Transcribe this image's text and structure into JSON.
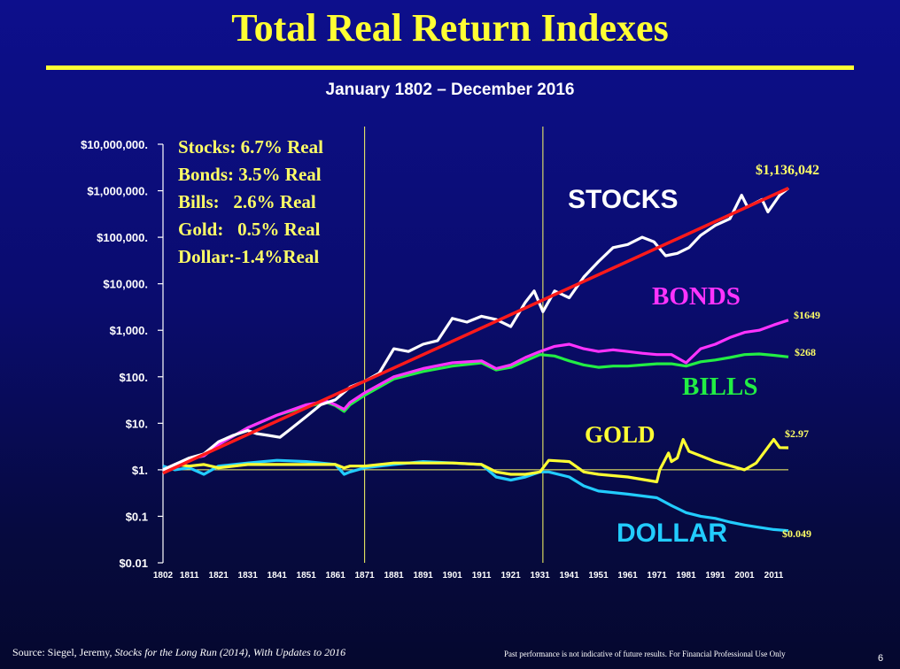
{
  "slide": {
    "title": "Total Real Return Indexes",
    "subtitle": "January 1802 – December 2016",
    "source_prefix": "Source: Siegel, Jeremy, ",
    "source_book": "Stocks for the Long Run (2014), With Updates to 2016",
    "disclaimer": "Past performance is not indicative of future results.  For Financial Professional Use Only",
    "page_number": "6"
  },
  "colors": {
    "background": "#0a0c6e",
    "title": "#ffff33",
    "stocks": "#ffffff",
    "trend": "#ff1a1a",
    "bonds": "#ff33ff",
    "bills": "#22ee44",
    "gold": "#ffff33",
    "dollar": "#22ccff",
    "axis": "#ffffff",
    "marker_lines": "#ffff66"
  },
  "chart_data": {
    "type": "line",
    "title": "Total Real Return Indexes",
    "subtitle": "January 1802 – December 2016",
    "y_scale": "log",
    "ylim": [
      0.01,
      10000000
    ],
    "xlim": [
      1802,
      2016
    ],
    "y_ticks": [
      {
        "value": 10000000,
        "label": "$10,000,000."
      },
      {
        "value": 1000000,
        "label": "$1,000,000."
      },
      {
        "value": 100000,
        "label": "$100,000."
      },
      {
        "value": 10000,
        "label": "$10,000."
      },
      {
        "value": 1000,
        "label": "$1,000."
      },
      {
        "value": 100,
        "label": "$100."
      },
      {
        "value": 10,
        "label": "$10."
      },
      {
        "value": 1,
        "label": "$1."
      },
      {
        "value": 0.1,
        "label": "$0.1"
      },
      {
        "value": 0.01,
        "label": "$0.01"
      }
    ],
    "x_ticks": [
      1802,
      1811,
      1821,
      1831,
      1841,
      1851,
      1861,
      1871,
      1881,
      1891,
      1901,
      1911,
      1921,
      1931,
      1941,
      1951,
      1961,
      1971,
      1981,
      1991,
      2001,
      2011
    ],
    "vertical_markers": [
      1871,
      1932
    ],
    "reference_value": 1,
    "legend_box": [
      "Stocks: 6.7% Real",
      "Bonds: 3.5% Real",
      "Bills:   2.6% Real",
      "Gold:   0.5% Real",
      "Dollar:-1.4%Real"
    ],
    "series": [
      {
        "name": "STOCKS",
        "end_label": "$1,136,042",
        "x": [
          1802,
          1806,
          1811,
          1816,
          1821,
          1826,
          1831,
          1834,
          1838,
          1842,
          1845,
          1851,
          1856,
          1861,
          1866,
          1871,
          1876,
          1881,
          1886,
          1891,
          1896,
          1901,
          1906,
          1911,
          1916,
          1921,
          1926,
          1929,
          1932,
          1936,
          1941,
          1946,
          1951,
          1956,
          1961,
          1966,
          1970,
          1974,
          1978,
          1982,
          1986,
          1991,
          1996,
          2000,
          2002,
          2007,
          2009,
          2013,
          2016
        ],
        "values": [
          1,
          1.3,
          1.8,
          2.2,
          4,
          5.5,
          7,
          6,
          5.5,
          5,
          7,
          14,
          25,
          32,
          60,
          80,
          120,
          400,
          350,
          500,
          600,
          1800,
          1500,
          2000,
          1700,
          1200,
          4000,
          7000,
          2500,
          7000,
          5000,
          14000,
          30000,
          60000,
          70000,
          100000,
          80000,
          40000,
          45000,
          60000,
          110000,
          180000,
          250000,
          800000,
          450000,
          650000,
          350000,
          800000,
          1136042
        ]
      },
      {
        "name": "BONDS",
        "end_label": "$1649",
        "x": [
          1802,
          1806,
          1811,
          1816,
          1821,
          1831,
          1841,
          1851,
          1858,
          1861,
          1864,
          1866,
          1871,
          1881,
          1891,
          1901,
          1911,
          1916,
          1921,
          1926,
          1931,
          1936,
          1941,
          1946,
          1951,
          1956,
          1961,
          1966,
          1971,
          1976,
          1981,
          1986,
          1991,
          1996,
          2001,
          2006,
          2011,
          2016
        ],
        "values": [
          1,
          1.3,
          1.7,
          2,
          3.5,
          8,
          15,
          25,
          30,
          25,
          20,
          28,
          45,
          100,
          150,
          200,
          220,
          150,
          180,
          260,
          350,
          450,
          500,
          400,
          350,
          380,
          350,
          320,
          300,
          300,
          200,
          400,
          500,
          700,
          900,
          1000,
          1300,
          1649
        ]
      },
      {
        "name": "BILLS",
        "end_label": "$268",
        "x": [
          1802,
          1806,
          1811,
          1816,
          1821,
          1831,
          1841,
          1851,
          1858,
          1861,
          1864,
          1866,
          1871,
          1881,
          1891,
          1901,
          1911,
          1916,
          1921,
          1926,
          1931,
          1936,
          1941,
          1946,
          1951,
          1956,
          1961,
          1966,
          1971,
          1976,
          1981,
          1986,
          1991,
          1996,
          2001,
          2006,
          2011,
          2016
        ],
        "values": [
          1,
          1.3,
          1.7,
          2,
          3.5,
          8,
          15,
          23,
          28,
          24,
          18,
          25,
          40,
          90,
          130,
          170,
          200,
          140,
          160,
          220,
          300,
          280,
          220,
          180,
          160,
          170,
          170,
          180,
          190,
          190,
          170,
          210,
          230,
          260,
          300,
          310,
          290,
          268
        ]
      },
      {
        "name": "GOLD",
        "end_label": "$2.97",
        "x": [
          1802,
          1806,
          1811,
          1816,
          1821,
          1831,
          1841,
          1851,
          1861,
          1864,
          1866,
          1871,
          1881,
          1891,
          1901,
          1911,
          1916,
          1921,
          1926,
          1931,
          1934,
          1941,
          1946,
          1951,
          1961,
          1971,
          1972,
          1975,
          1976,
          1978,
          1980,
          1982,
          1986,
          1991,
          2001,
          2005,
          2011,
          2013,
          2016
        ],
        "values": [
          1,
          1.3,
          1.2,
          1.3,
          1.1,
          1.3,
          1.3,
          1.3,
          1.3,
          1.1,
          1.2,
          1.2,
          1.4,
          1.4,
          1.4,
          1.3,
          0.9,
          0.8,
          0.8,
          0.9,
          1.6,
          1.5,
          0.9,
          0.8,
          0.7,
          0.55,
          1,
          2.3,
          1.5,
          1.8,
          4.5,
          2.5,
          2,
          1.5,
          1,
          1.4,
          4.5,
          3,
          2.97
        ]
      },
      {
        "name": "DOLLAR",
        "end_label": "$0.049",
        "x": [
          1802,
          1806,
          1811,
          1816,
          1821,
          1831,
          1841,
          1851,
          1861,
          1864,
          1866,
          1871,
          1881,
          1891,
          1901,
          1911,
          1916,
          1921,
          1926,
          1931,
          1934,
          1941,
          1946,
          1951,
          1961,
          1971,
          1976,
          1981,
          1986,
          1991,
          1996,
          2001,
          2006,
          2011,
          2016
        ],
        "values": [
          1.2,
          1,
          1.1,
          0.8,
          1.2,
          1.4,
          1.6,
          1.5,
          1.3,
          0.8,
          0.9,
          1.1,
          1.3,
          1.5,
          1.4,
          1.3,
          0.7,
          0.6,
          0.7,
          0.9,
          0.9,
          0.7,
          0.45,
          0.35,
          0.3,
          0.25,
          0.17,
          0.12,
          0.1,
          0.09,
          0.075,
          0.065,
          0.058,
          0.052,
          0.049
        ]
      }
    ],
    "trend_line": {
      "x": [
        1802,
        2016
      ],
      "values": [
        0.85,
        1136042
      ]
    },
    "inline_labels": [
      "STOCKS",
      "BONDS",
      "BILLS",
      "GOLD",
      "DOLLAR"
    ]
  }
}
